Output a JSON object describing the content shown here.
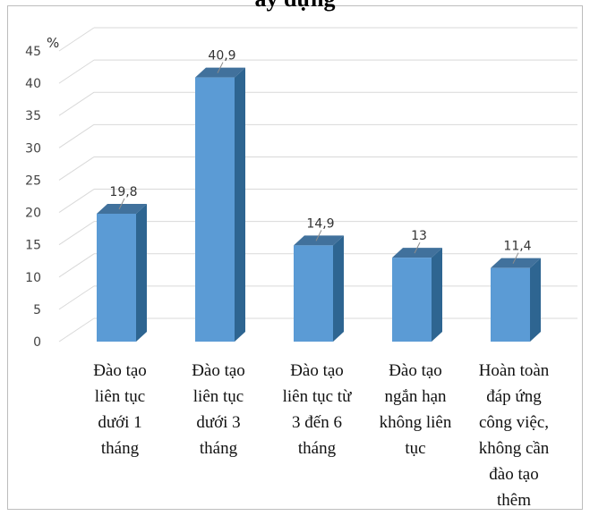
{
  "chart_data": {
    "type": "bar",
    "title": "ây dựng",
    "unit_label": "%",
    "categories": [
      [
        "Đào tạo",
        "liên tục",
        "dưới 1",
        "tháng"
      ],
      [
        "Đào tạo",
        "liên tục",
        "dưới 3",
        "tháng"
      ],
      [
        "Đào tạo",
        "liên tục từ",
        "3 đến 6",
        "tháng"
      ],
      [
        "Đào tạo",
        "ngắn hạn",
        "không liên",
        "tục"
      ],
      [
        "Hoàn toàn",
        "đáp ứng",
        "công việc,",
        "không cần",
        "đào tạo",
        "thêm"
      ]
    ],
    "values": [
      19.8,
      40.9,
      14.9,
      13,
      11.4
    ],
    "value_labels": [
      "19,8",
      "40,9",
      "14,9",
      "13",
      "11,4"
    ],
    "ylim": [
      0,
      45
    ],
    "yticks": [
      0,
      5,
      10,
      15,
      20,
      25,
      30,
      35,
      40,
      45
    ],
    "grid": true,
    "style": "3d-column",
    "colors": {
      "bar_front": "#5b9bd5",
      "bar_side": "#2e6591",
      "bar_top": "#41719c",
      "grid": "#d9d9d9"
    }
  }
}
